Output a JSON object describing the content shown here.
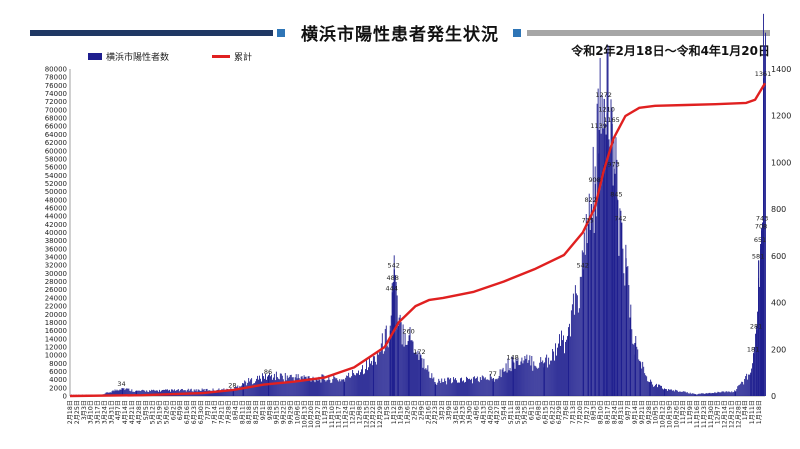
{
  "header": {
    "title": "横浜市陽性患者発生状況",
    "period": "令和2年2月18日～令和4年1月20日"
  },
  "colors": {
    "bars": "#1f1f8f",
    "line": "#e02020",
    "title_bar_left": "#1f3864",
    "title_bar_right": "#a6a6a6",
    "title_square": "#2e75b6"
  },
  "chart_data": {
    "type": "bar+line",
    "legend_position": "top-left",
    "grid": false,
    "series": [
      {
        "name": "横浜市陽性者数",
        "type": "bar",
        "axis": "right",
        "values_by_date": [
          [
            "2020-03-20",
            5
          ],
          [
            "2020-04-10",
            34
          ],
          [
            "2020-04-24",
            21
          ],
          [
            "2020-07-31",
            28
          ],
          [
            "2020-08-10",
            55
          ],
          [
            "2020-09-05",
            86
          ],
          [
            "2020-11-20",
            70
          ],
          [
            "2020-12-20",
            150
          ],
          [
            "2021-01-06",
            280
          ],
          [
            "2021-01-08",
            444
          ],
          [
            "2021-01-09",
            488
          ],
          [
            "2021-01-10",
            542
          ],
          [
            "2021-01-14",
            300
          ],
          [
            "2021-01-25",
            260
          ],
          [
            "2021-02-05",
            172
          ],
          [
            "2021-02-20",
            60
          ],
          [
            "2021-04-20",
            77
          ],
          [
            "2021-05-10",
            148
          ],
          [
            "2021-06-10",
            140
          ],
          [
            "2021-07-05",
            260
          ],
          [
            "2021-07-20",
            542
          ],
          [
            "2021-07-25",
            735
          ],
          [
            "2021-07-28",
            822
          ],
          [
            "2021-08-01",
            908
          ],
          [
            "2021-08-05",
            1139
          ],
          [
            "2021-08-10",
            1272
          ],
          [
            "2021-08-13",
            1210
          ],
          [
            "2021-08-18",
            1165
          ],
          [
            "2021-08-20",
            973
          ],
          [
            "2021-08-23",
            845
          ],
          [
            "2021-08-27",
            742
          ],
          [
            "2021-09-01",
            590
          ],
          [
            "2021-09-05",
            336
          ],
          [
            "2021-09-10",
            227
          ],
          [
            "2021-09-15",
            150
          ],
          [
            "2021-09-25",
            60
          ],
          [
            "2021-10-10",
            30
          ],
          [
            "2021-11-10",
            8
          ],
          [
            "2021-12-20",
            20
          ],
          [
            "2022-01-05",
            100
          ],
          [
            "2022-01-08",
            181
          ],
          [
            "2022-01-11",
            281
          ],
          [
            "2022-01-13",
            581
          ],
          [
            "2022-01-15",
            651
          ],
          [
            "2022-01-16",
            708
          ],
          [
            "2022-01-17",
            743
          ],
          [
            "2022-01-18",
            1361
          ]
        ]
      },
      {
        "name": "累計",
        "type": "line",
        "axis": "left",
        "values_by_date": [
          [
            "2020-02-18",
            0
          ],
          [
            "2020-05-01",
            200
          ],
          [
            "2020-07-01",
            700
          ],
          [
            "2020-08-01",
            1500
          ],
          [
            "2020-09-01",
            2800
          ],
          [
            "2020-10-01",
            3500
          ],
          [
            "2020-11-01",
            4500
          ],
          [
            "2020-12-01",
            7000
          ],
          [
            "2021-01-01",
            12000
          ],
          [
            "2021-01-15",
            18000
          ],
          [
            "2021-02-01",
            22000
          ],
          [
            "2021-02-15",
            23500
          ],
          [
            "2021-03-01",
            24000
          ],
          [
            "2021-04-01",
            25500
          ],
          [
            "2021-05-01",
            28000
          ],
          [
            "2021-06-01",
            31000
          ],
          [
            "2021-07-01",
            34500
          ],
          [
            "2021-07-20",
            40000
          ],
          [
            "2021-08-01",
            46000
          ],
          [
            "2021-08-10",
            55000
          ],
          [
            "2021-08-20",
            63000
          ],
          [
            "2021-09-01",
            68500
          ],
          [
            "2021-09-15",
            70500
          ],
          [
            "2021-10-01",
            71000
          ],
          [
            "2021-11-01",
            71200
          ],
          [
            "2021-12-01",
            71400
          ],
          [
            "2022-01-01",
            71700
          ],
          [
            "2022-01-10",
            72500
          ],
          [
            "2022-01-20",
            76500
          ]
        ]
      }
    ],
    "left_axis": {
      "min": 0,
      "max": 80000,
      "step": 2000
    },
    "right_axis": {
      "min": 0,
      "max": 1400,
      "step": 200
    },
    "x_start": "2020-02-18",
    "x_end": "2022-01-20",
    "x_tick_labels": [
      "2月18日",
      "2月25日",
      "3月3日",
      "3月10日",
      "3月17日",
      "3月24日",
      "3月31日",
      "4月7日",
      "4月14日",
      "4月21日",
      "4月28日",
      "5月5日",
      "5月12日",
      "5月19日",
      "5月26日",
      "6月2日",
      "6月9日",
      "6月16日",
      "6月23日",
      "6月30日",
      "7月7日",
      "7月14日",
      "7月21日",
      "7月28日",
      "8月4日",
      "8月11日",
      "8月18日",
      "8月25日",
      "9月1日",
      "9月8日",
      "9月15日",
      "9月22日",
      "9月29日",
      "10月6日",
      "10月13日",
      "10月20日",
      "10月27日",
      "11月3日",
      "11月10日",
      "11月17日",
      "11月24日",
      "12月1日",
      "12月8日",
      "12月15日",
      "12月22日",
      "12月29日",
      "1月5日",
      "1月12日",
      "1月19日",
      "1月26日",
      "2月2日",
      "2月9日",
      "2月16日",
      "2月23日",
      "3月2日",
      "3月9日",
      "3月16日",
      "3月23日",
      "3月30日",
      "4月6日",
      "4月13日",
      "4月20日",
      "4月27日",
      "5月4日",
      "5月11日",
      "5月18日",
      "5月25日",
      "6月1日",
      "6月8日",
      "6月15日",
      "6月22日",
      "6月29日",
      "7月6日",
      "7月13日",
      "7月20日",
      "7月27日",
      "8月3日",
      "8月10日",
      "8月17日",
      "8月24日",
      "8月31日",
      "9月7日",
      "9月14日",
      "9月21日",
      "9月28日",
      "10月5日",
      "10月12日",
      "10月19日",
      "10月26日",
      "11月2日",
      "11月9日",
      "11月16日",
      "11月23日",
      "11月30日",
      "12月7日",
      "12月14日",
      "12月21日",
      "12月28日",
      "1月4日",
      "1月11日",
      "1月18日"
    ],
    "data_labels": [
      {
        "date": "2021-01-10",
        "value": "542"
      },
      {
        "date": "2021-01-09",
        "value": "488"
      },
      {
        "date": "2021-01-08",
        "value": "444"
      },
      {
        "date": "2021-08-10",
        "value": "1272"
      },
      {
        "date": "2021-08-13",
        "value": "1210"
      },
      {
        "date": "2021-08-18",
        "value": "1165"
      },
      {
        "date": "2021-08-05",
        "value": "1139"
      },
      {
        "date": "2021-08-20",
        "value": "973"
      },
      {
        "date": "2021-08-01",
        "value": "908"
      },
      {
        "date": "2021-08-23",
        "value": "845"
      },
      {
        "date": "2021-07-28",
        "value": "822"
      },
      {
        "date": "2021-08-27",
        "value": "742"
      },
      {
        "date": "2021-07-25",
        "value": "735"
      },
      {
        "date": "2021-07-20",
        "value": "542"
      },
      {
        "date": "2021-05-10",
        "value": "148"
      },
      {
        "date": "2021-04-20",
        "value": "77"
      },
      {
        "date": "2020-09-05",
        "value": "86"
      },
      {
        "date": "2020-04-10",
        "value": "34"
      },
      {
        "date": "2020-07-31",
        "value": "28"
      },
      {
        "date": "2021-02-05",
        "value": "172"
      },
      {
        "date": "2021-01-25",
        "value": "260"
      },
      {
        "date": "2022-01-18",
        "value": "1361"
      },
      {
        "date": "2022-01-17",
        "value": "743"
      },
      {
        "date": "2022-01-16",
        "value": "708"
      },
      {
        "date": "2022-01-15",
        "value": "651"
      },
      {
        "date": "2022-01-13",
        "value": "581"
      },
      {
        "date": "2022-01-11",
        "value": "281"
      },
      {
        "date": "2022-01-08",
        "value": "181"
      }
    ]
  }
}
